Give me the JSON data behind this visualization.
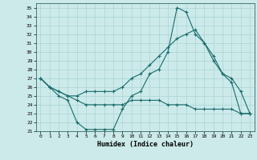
{
  "title": "",
  "xlabel": "Humidex (Indice chaleur)",
  "background_color": "#cceaea",
  "grid_color": "#aad4d4",
  "line_color": "#1a6b6b",
  "xlim": [
    -0.5,
    23.5
  ],
  "ylim": [
    21,
    35.5
  ],
  "yticks": [
    21,
    22,
    23,
    24,
    25,
    26,
    27,
    28,
    29,
    30,
    31,
    32,
    33,
    34,
    35
  ],
  "xticks": [
    0,
    1,
    2,
    3,
    4,
    5,
    6,
    7,
    8,
    9,
    10,
    11,
    12,
    13,
    14,
    15,
    16,
    17,
    18,
    19,
    20,
    21,
    22,
    23
  ],
  "line1_x": [
    0,
    1,
    2,
    3,
    4,
    5,
    6,
    7,
    8,
    9,
    10,
    11,
    12,
    13,
    14,
    15,
    16,
    17,
    18,
    19,
    20,
    21,
    22,
    23
  ],
  "line1_y": [
    27,
    26,
    25,
    24.5,
    22,
    21.2,
    21.2,
    21.2,
    21.2,
    23.5,
    25,
    25.5,
    27.5,
    28,
    30,
    35,
    34.5,
    32,
    31,
    29.5,
    27.5,
    26.5,
    23,
    23
  ],
  "line2_x": [
    0,
    1,
    2,
    3,
    4,
    5,
    6,
    7,
    8,
    9,
    10,
    11,
    12,
    13,
    14,
    15,
    16,
    17,
    18,
    19,
    20,
    21,
    22,
    23
  ],
  "line2_y": [
    27,
    26,
    25.5,
    25,
    24.5,
    24,
    24,
    24,
    24,
    24,
    24.5,
    24.5,
    24.5,
    24.5,
    24,
    24,
    24,
    23.5,
    23.5,
    23.5,
    23.5,
    23.5,
    23,
    23
  ],
  "line3_x": [
    0,
    1,
    2,
    3,
    4,
    5,
    6,
    7,
    8,
    9,
    10,
    11,
    12,
    13,
    14,
    15,
    16,
    17,
    18,
    19,
    20,
    21,
    22,
    23
  ],
  "line3_y": [
    27,
    26,
    25.5,
    25,
    25,
    25.5,
    25.5,
    25.5,
    25.5,
    26,
    27,
    27.5,
    28.5,
    29.5,
    30.5,
    31.5,
    32,
    32.5,
    31,
    29,
    27.5,
    27,
    25.5,
    23
  ]
}
